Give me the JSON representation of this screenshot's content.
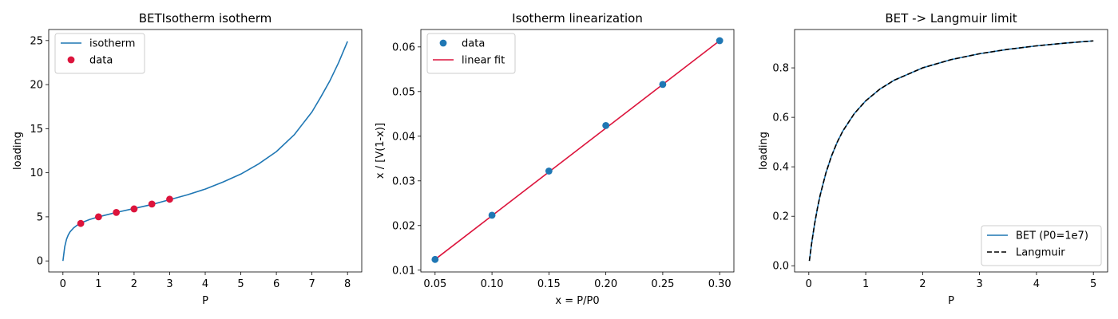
{
  "chart_data": [
    {
      "type": "line",
      "title": "BETIsotherm isotherm",
      "xlabel": "P",
      "ylabel": "loading",
      "xlim": [
        -0.4,
        8.4
      ],
      "ylim": [
        -1.25,
        26.25
      ],
      "xticks": [
        0,
        1,
        2,
        3,
        4,
        5,
        6,
        7,
        8
      ],
      "yticks": [
        0,
        5,
        10,
        15,
        20,
        25
      ],
      "legend": "top-left",
      "legend_labels": [
        "isotherm",
        "data"
      ],
      "grid": false,
      "series": [
        {
          "name": "isotherm",
          "kind": "line",
          "color": "#1f77b4",
          "x": [
            0,
            0.05,
            0.1,
            0.15,
            0.2,
            0.3,
            0.4,
            0.5,
            0.75,
            1,
            1.5,
            2,
            2.5,
            3,
            3.5,
            4,
            4.5,
            5,
            5.5,
            6,
            6.5,
            7,
            7.25,
            7.5,
            7.75,
            8
          ],
          "y": [
            0,
            1.6,
            2.45,
            2.95,
            3.3,
            3.75,
            4.05,
            4.3,
            4.7,
            5.0,
            5.5,
            5.95,
            6.4,
            6.95,
            7.5,
            8.15,
            8.95,
            9.85,
            11.0,
            12.4,
            14.3,
            16.9,
            18.6,
            20.4,
            22.5,
            24.9
          ]
        },
        {
          "name": "data",
          "kind": "scatter",
          "color": "#dc143c",
          "x": [
            0.5,
            1.0,
            1.5,
            2.0,
            2.5,
            3.0
          ],
          "y": [
            4.25,
            5.0,
            5.5,
            5.9,
            6.45,
            7.0
          ]
        }
      ]
    },
    {
      "type": "scatter",
      "title": "Isotherm linearization",
      "xlabel": "x = P/P0",
      "ylabel": "x / [V(1-x)]",
      "xlim": [
        0.0375,
        0.3125
      ],
      "ylim": [
        0.0096,
        0.0639
      ],
      "xticks": [
        0.05,
        0.1,
        0.15,
        0.2,
        0.25,
        0.3
      ],
      "xtick_labels": [
        "0.05",
        "0.10",
        "0.15",
        "0.20",
        "0.25",
        "0.30"
      ],
      "yticks": [
        0.01,
        0.02,
        0.03,
        0.04,
        0.05,
        0.06
      ],
      "ytick_labels": [
        "0.01",
        "0.02",
        "0.03",
        "0.04",
        "0.05",
        "0.06"
      ],
      "legend": "top-left",
      "legend_labels": [
        "data",
        "linear fit"
      ],
      "grid": false,
      "series": [
        {
          "name": "data",
          "kind": "scatter",
          "color": "#1f77b4",
          "x": [
            0.05,
            0.1,
            0.15,
            0.2,
            0.25,
            0.3
          ],
          "y": [
            0.0124,
            0.0223,
            0.0322,
            0.0424,
            0.0516,
            0.0614
          ]
        },
        {
          "name": "linear fit",
          "kind": "line",
          "color": "#dc143c",
          "x": [
            0.05,
            0.3
          ],
          "y": [
            0.0124,
            0.0614
          ]
        }
      ]
    },
    {
      "type": "line",
      "title": "BET -> Langmuir limit",
      "xlabel": "P",
      "ylabel": "loading",
      "xlim": [
        -0.25,
        5.25
      ],
      "ylim": [
        -0.025,
        0.955
      ],
      "xticks": [
        0,
        1,
        2,
        3,
        4,
        5
      ],
      "yticks": [
        0.0,
        0.2,
        0.4,
        0.6,
        0.8
      ],
      "ytick_labels": [
        "0.0",
        "0.2",
        "0.4",
        "0.6",
        "0.8"
      ],
      "legend": "bottom-right",
      "legend_labels": [
        "BET (P0=1e7)",
        "Langmuir"
      ],
      "grid": false,
      "series": [
        {
          "name": "BET (P0=1e7)",
          "kind": "line",
          "color": "#1f77b4",
          "dashed": false,
          "x": [
            0.01,
            0.05,
            0.1,
            0.15,
            0.2,
            0.3,
            0.4,
            0.5,
            0.6,
            0.8,
            1,
            1.25,
            1.5,
            2,
            2.5,
            3,
            3.5,
            4,
            4.5,
            5
          ],
          "y": [
            0.0196,
            0.0909,
            0.1667,
            0.2308,
            0.2857,
            0.375,
            0.4444,
            0.5,
            0.5455,
            0.6154,
            0.6667,
            0.7143,
            0.75,
            0.8,
            0.8333,
            0.8571,
            0.875,
            0.8889,
            0.9,
            0.9091
          ]
        },
        {
          "name": "Langmuir",
          "kind": "line",
          "color": "#000000",
          "dashed": true,
          "x": [
            0.01,
            0.05,
            0.1,
            0.15,
            0.2,
            0.3,
            0.4,
            0.5,
            0.6,
            0.8,
            1,
            1.25,
            1.5,
            2,
            2.5,
            3,
            3.5,
            4,
            4.5,
            5
          ],
          "y": [
            0.0196,
            0.0909,
            0.1667,
            0.2308,
            0.2857,
            0.375,
            0.4444,
            0.5,
            0.5455,
            0.6154,
            0.6667,
            0.7143,
            0.75,
            0.8,
            0.8333,
            0.8571,
            0.875,
            0.8889,
            0.9,
            0.9091
          ]
        }
      ]
    }
  ]
}
